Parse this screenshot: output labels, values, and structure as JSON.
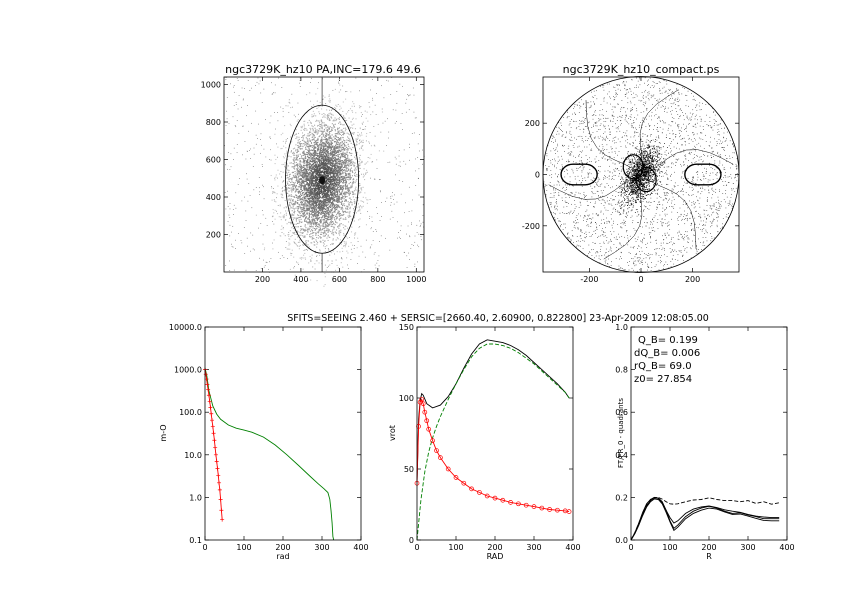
{
  "figure": {
    "subtitle": "SFITS=SEEING 2.460 + SERSIC=[2660.40, 2.60900, 0.822800]  23-Apr-2009 12:08:05.00"
  },
  "colors": {
    "axes": "#000000",
    "green": "#008000",
    "red": "#ff0000"
  },
  "chart_data": [
    {
      "id": "image",
      "type": "scatter",
      "title": "ngc3729K_hz10 PA,INC=179.6 49.6",
      "xlim": [
        0,
        1040
      ],
      "ylim": [
        0,
        1040
      ],
      "xticks": [
        200,
        400,
        600,
        800,
        1000
      ],
      "yticks": [
        200,
        400,
        600,
        800,
        1000
      ],
      "galaxy_center": [
        510,
        490
      ],
      "ellipse": {
        "center": [
          510,
          495
        ],
        "semi_x": 190,
        "semi_y": 395
      }
    },
    {
      "id": "compact",
      "type": "scatter",
      "title": "ngc3729K_hz10_compact.ps",
      "xlim": [
        -380,
        380
      ],
      "ylim": [
        -380,
        380
      ],
      "xticks": [
        -200,
        0,
        200
      ],
      "yticks": [
        -200,
        0,
        200
      ],
      "circle_radius": 380
    },
    {
      "id": "density",
      "type": "line",
      "xlabel": "rad",
      "ylabel": "m-O",
      "xlim": [
        0,
        400
      ],
      "ylim": [
        0.1,
        10000
      ],
      "yscale": "log",
      "xticks": [
        0,
        100,
        200,
        300,
        400
      ],
      "yticks": [
        0.1,
        1,
        10,
        100,
        1000,
        10000
      ],
      "yticklabels": [
        "0.1",
        "1.0",
        "10.0",
        "100.0",
        "1000.0",
        "10000.0"
      ],
      "series": [
        {
          "color": "green",
          "x": [
            0,
            5,
            10,
            20,
            30,
            40,
            60,
            80,
            100,
            120,
            150,
            180,
            210,
            240,
            270,
            290,
            305,
            315,
            320,
            323,
            326,
            328,
            330
          ],
          "y": [
            1100,
            700,
            320,
            140,
            90,
            68,
            50,
            42,
            38,
            34,
            26,
            17,
            10,
            5.6,
            3.1,
            2.1,
            1.6,
            1.3,
            0.9,
            0.5,
            0.25,
            0.12,
            0.1
          ]
        },
        {
          "color": "red",
          "marker": "plus",
          "x": [
            0,
            2,
            4,
            6,
            8,
            10,
            12,
            14,
            16,
            18,
            20,
            22,
            24,
            26,
            28,
            30,
            32,
            34,
            36,
            38,
            40,
            42,
            44
          ],
          "y": [
            1000,
            780,
            600,
            450,
            340,
            250,
            180,
            130,
            92,
            65,
            46,
            32,
            22,
            15,
            10,
            7,
            4.8,
            3.3,
            2.2,
            1.5,
            0.9,
            0.5,
            0.3
          ]
        }
      ]
    },
    {
      "id": "rotation",
      "type": "line",
      "xlabel": "RAD",
      "ylabel": "vrot",
      "xlim": [
        0,
        400
      ],
      "ylim": [
        0,
        150
      ],
      "xticks": [
        0,
        100,
        200,
        300,
        400
      ],
      "yticks": [
        0,
        50,
        100,
        150
      ],
      "series": [
        {
          "color": "black",
          "x": [
            0,
            4,
            8,
            12,
            16,
            25,
            40,
            60,
            80,
            100,
            120,
            140,
            160,
            180,
            200,
            220,
            240,
            260,
            280,
            300,
            320,
            340,
            360,
            380,
            390
          ],
          "y": [
            40,
            85,
            98,
            103,
            102,
            96,
            93,
            95,
            101,
            110,
            121,
            131,
            138,
            141,
            140,
            139,
            137,
            134,
            130,
            125,
            120,
            115,
            110,
            104,
            100
          ]
        },
        {
          "color": "green",
          "dash": true,
          "x": [
            0,
            10,
            20,
            30,
            40,
            50,
            60,
            80,
            100,
            120,
            140,
            160,
            180,
            200,
            220,
            240,
            260,
            280,
            300,
            320,
            340,
            360,
            380,
            390
          ],
          "y": [
            0,
            28,
            48,
            62,
            72,
            80,
            87,
            99,
            110,
            120,
            129,
            135,
            138,
            138,
            137,
            135,
            132,
            128,
            124,
            119,
            114,
            109,
            104,
            100
          ]
        },
        {
          "color": "red",
          "marker": "circle",
          "x": [
            0,
            4,
            8,
            12,
            16,
            20,
            25,
            30,
            40,
            50,
            60,
            80,
            100,
            120,
            140,
            160,
            180,
            200,
            220,
            240,
            260,
            280,
            300,
            320,
            340,
            360,
            380,
            390
          ],
          "y": [
            40,
            80,
            97,
            99,
            96,
            90,
            84,
            78,
            70,
            63,
            58,
            50,
            44,
            40,
            36,
            33.5,
            31,
            29.5,
            28,
            26.5,
            25.5,
            24.5,
            23.5,
            22.5,
            21.5,
            21,
            20.5,
            20
          ]
        }
      ]
    },
    {
      "id": "quadrants",
      "type": "line",
      "xlabel": "R",
      "ylabel": "FT/FR_0 - quadrants",
      "xlim": [
        0,
        400
      ],
      "ylim": [
        0,
        1.0
      ],
      "xticks": [
        0,
        100,
        200,
        300,
        400
      ],
      "yticks": [
        0,
        0.2,
        0.4,
        0.6,
        0.8,
        1.0
      ],
      "yticklabels": [
        "0.0",
        "0.2",
        "0.4",
        "0.6",
        "0.8",
        "1.0"
      ],
      "annotations": [
        "Q_B=  0.199",
        "dQ_B=  0.006",
        "rQ_B=   69.0",
        "z0= 27.854"
      ],
      "series": [
        {
          "color": "black",
          "x": [
            0,
            10,
            20,
            30,
            40,
            50,
            60,
            70,
            80,
            90,
            100,
            110,
            120,
            140,
            160,
            180,
            200,
            220,
            240,
            260,
            280,
            300,
            320,
            340,
            360,
            380
          ],
          "y": [
            0,
            0.03,
            0.07,
            0.12,
            0.16,
            0.185,
            0.198,
            0.197,
            0.18,
            0.14,
            0.09,
            0.055,
            0.07,
            0.11,
            0.135,
            0.15,
            0.158,
            0.15,
            0.135,
            0.125,
            0.128,
            0.118,
            0.11,
            0.1,
            0.1,
            0.1
          ]
        },
        {
          "color": "black",
          "x": [
            0,
            10,
            20,
            30,
            40,
            50,
            60,
            70,
            80,
            90,
            100,
            110,
            120,
            140,
            160,
            180,
            200,
            220,
            240,
            260,
            280,
            300,
            320,
            340,
            360,
            380
          ],
          "y": [
            0,
            0.035,
            0.08,
            0.13,
            0.17,
            0.19,
            0.2,
            0.195,
            0.175,
            0.14,
            0.105,
            0.08,
            0.09,
            0.125,
            0.145,
            0.155,
            0.16,
            0.152,
            0.142,
            0.135,
            0.13,
            0.12,
            0.112,
            0.108,
            0.105,
            0.105
          ]
        },
        {
          "color": "black",
          "x": [
            0,
            10,
            20,
            30,
            40,
            50,
            60,
            70,
            80,
            90,
            100,
            110,
            120,
            140,
            160,
            180,
            200,
            220,
            240,
            260,
            280,
            300,
            320,
            340,
            360,
            380
          ],
          "y": [
            0,
            0.03,
            0.07,
            0.115,
            0.155,
            0.18,
            0.193,
            0.19,
            0.17,
            0.13,
            0.085,
            0.045,
            0.06,
            0.1,
            0.125,
            0.14,
            0.15,
            0.145,
            0.132,
            0.12,
            0.122,
            0.112,
            0.102,
            0.092,
            0.09,
            0.09
          ]
        },
        {
          "color": "black",
          "dash": true,
          "x": [
            0,
            10,
            20,
            30,
            40,
            50,
            60,
            70,
            80,
            90,
            100,
            110,
            120,
            140,
            160,
            180,
            200,
            220,
            240,
            260,
            280,
            300,
            320,
            340,
            360,
            380
          ],
          "y": [
            0,
            0.035,
            0.08,
            0.125,
            0.165,
            0.19,
            0.2,
            0.2,
            0.192,
            0.18,
            0.17,
            0.168,
            0.17,
            0.18,
            0.188,
            0.19,
            0.198,
            0.19,
            0.185,
            0.185,
            0.18,
            0.185,
            0.172,
            0.18,
            0.168,
            0.175
          ]
        }
      ]
    }
  ]
}
